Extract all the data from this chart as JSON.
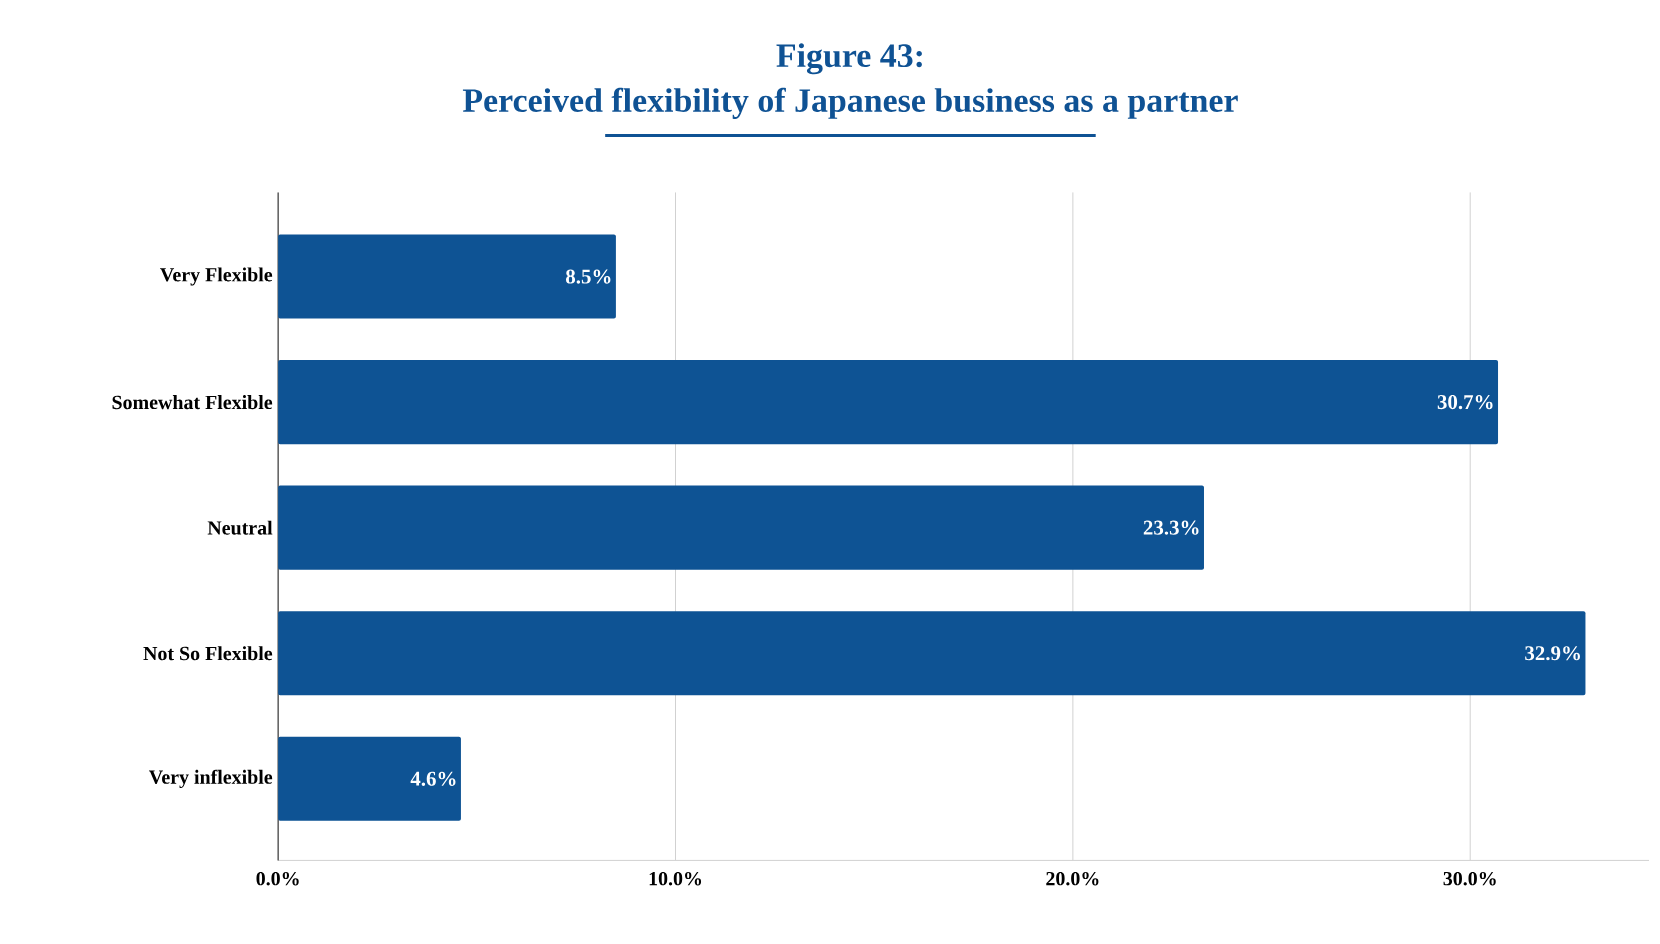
{
  "chart_data": {
    "type": "bar",
    "orientation": "horizontal",
    "title": "Figure 43:",
    "subtitle": "Perceived flexibility of Japanese business as a partner",
    "categories": [
      "Very Flexible",
      "Somewhat Flexible",
      "Neutral",
      "Not So Flexible",
      "Very inflexible"
    ],
    "values": [
      8.5,
      30.7,
      23.3,
      32.9,
      4.6
    ],
    "value_labels": [
      "8.5%",
      "30.7%",
      "23.3%",
      "32.9%",
      "4.6%"
    ],
    "color": "#0e5394",
    "xlim": [
      0,
      34.5
    ],
    "xticks": [
      {
        "value": 0,
        "label": "0.0%"
      },
      {
        "value": 10,
        "label": "10.0%"
      },
      {
        "value": 20,
        "label": "20.0%"
      },
      {
        "value": 30,
        "label": "30.0%"
      }
    ],
    "grid": "x"
  }
}
